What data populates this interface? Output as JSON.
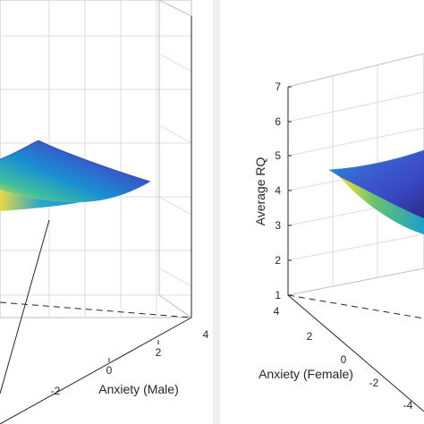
{
  "chart_data": [
    {
      "type": "surface",
      "panel": "left",
      "xlabel": "Anxiety (Male)",
      "x_ticks": [
        "-2",
        "0",
        "2",
        "4"
      ],
      "colormap": "parula",
      "grid": true
    },
    {
      "type": "surface",
      "panel": "right",
      "xlabel": "Anxiety (Female)",
      "zlabel": "Average RQ",
      "z_ticks": [
        "1",
        "2",
        "3",
        "4",
        "5",
        "6",
        "7"
      ],
      "x_ticks": [
        "4",
        "2",
        "0",
        "-2",
        "-4"
      ],
      "zlim": [
        1,
        7
      ],
      "colormap": "parula",
      "grid": true
    }
  ]
}
